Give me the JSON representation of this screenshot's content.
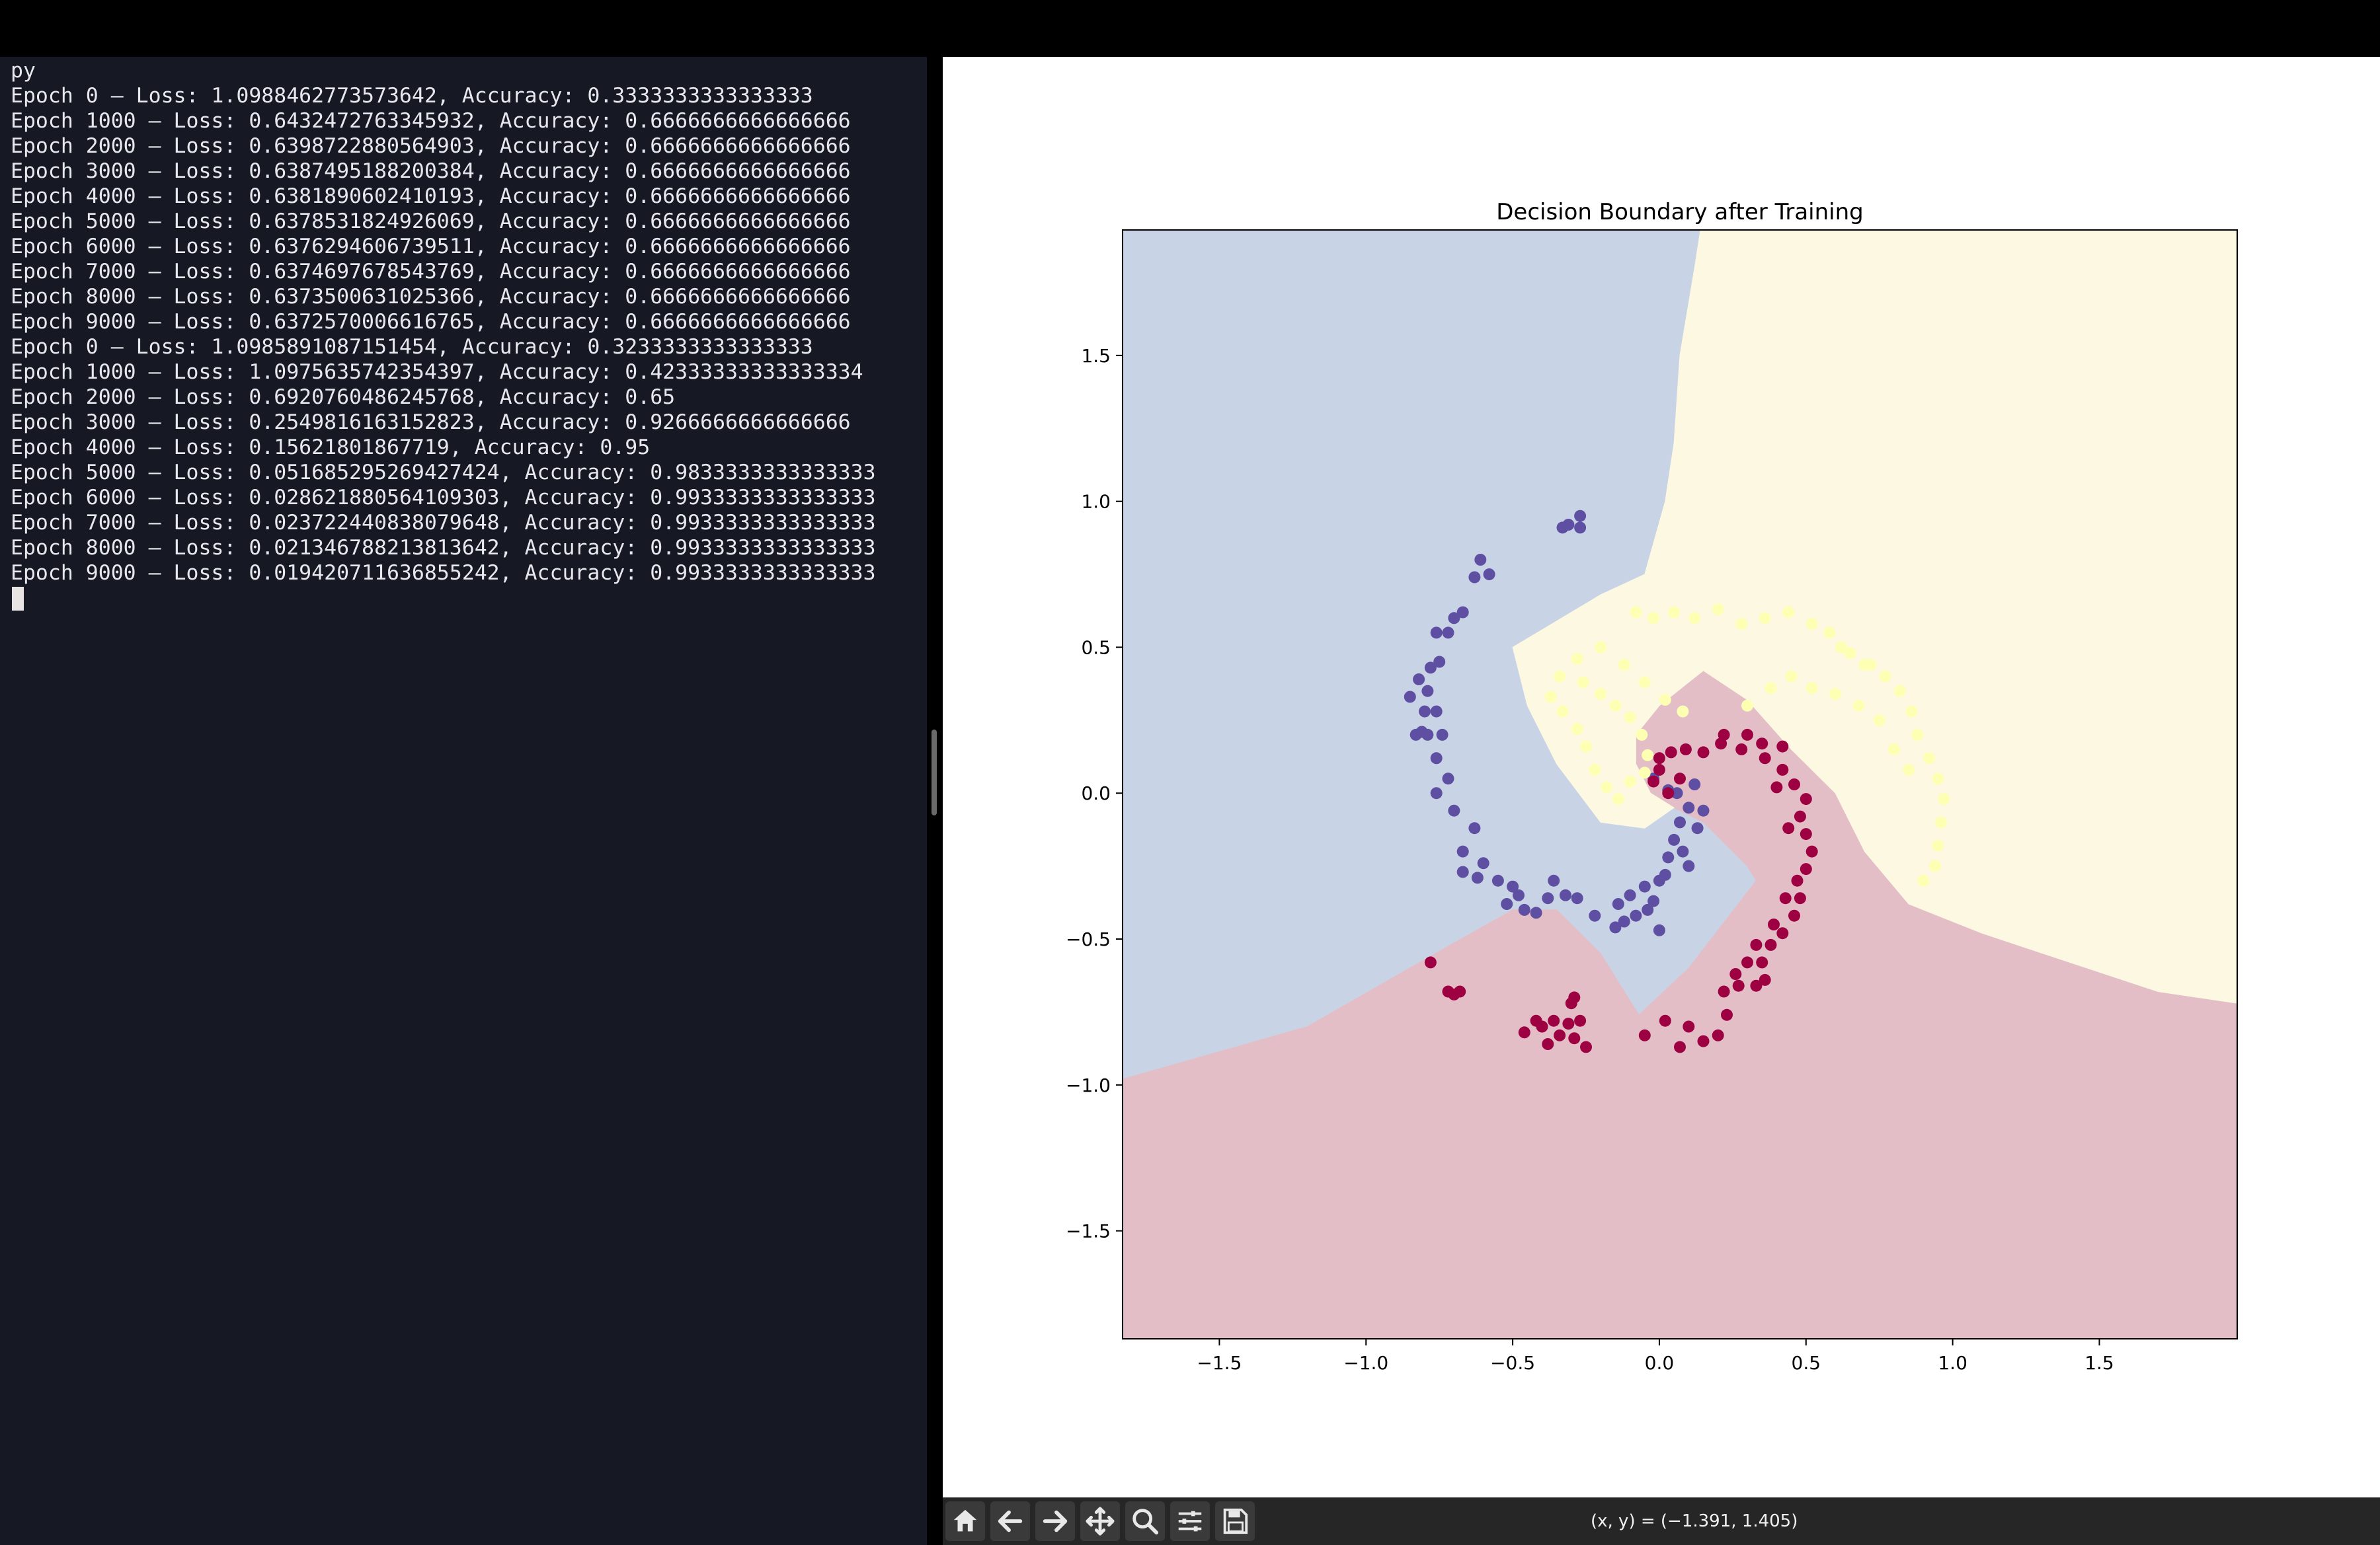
{
  "terminal": {
    "lines": [
      "py",
      "Epoch 0 – Loss: 1.0988462773573642, Accuracy: 0.3333333333333333",
      "Epoch 1000 – Loss: 0.6432472763345932, Accuracy: 0.6666666666666666",
      "Epoch 2000 – Loss: 0.6398722880564903, Accuracy: 0.6666666666666666",
      "Epoch 3000 – Loss: 0.6387495188200384, Accuracy: 0.6666666666666666",
      "Epoch 4000 – Loss: 0.6381890602410193, Accuracy: 0.6666666666666666",
      "Epoch 5000 – Loss: 0.6378531824926069, Accuracy: 0.6666666666666666",
      "Epoch 6000 – Loss: 0.6376294606739511, Accuracy: 0.6666666666666666",
      "Epoch 7000 – Loss: 0.6374697678543769, Accuracy: 0.6666666666666666",
      "Epoch 8000 – Loss: 0.6373500631025366, Accuracy: 0.6666666666666666",
      "Epoch 9000 – Loss: 0.6372570006616765, Accuracy: 0.6666666666666666",
      "Epoch 0 – Loss: 1.0985891087151454, Accuracy: 0.3233333333333333",
      "Epoch 1000 – Loss: 1.0975635742354397, Accuracy: 0.42333333333333334",
      "Epoch 2000 – Loss: 0.6920760486245768, Accuracy: 0.65",
      "Epoch 3000 – Loss: 0.2549816163152823, Accuracy: 0.9266666666666666",
      "Epoch 4000 – Loss: 0.15621801867719, Accuracy: 0.95",
      "Epoch 5000 – Loss: 0.051685295269427424, Accuracy: 0.9833333333333333",
      "Epoch 6000 – Loss: 0.028621880564109303, Accuracy: 0.9933333333333333",
      "Epoch 7000 – Loss: 0.023722440838079648, Accuracy: 0.9933333333333333",
      "Epoch 8000 – Loss: 0.021346788213813642, Accuracy: 0.9933333333333333",
      "Epoch 9000 – Loss: 0.019420711636855242, Accuracy: 0.9933333333333333"
    ]
  },
  "toolbar": {
    "icons": [
      "home-icon",
      "back-arrow-icon",
      "forward-arrow-icon",
      "pan-icon",
      "zoom-icon",
      "configure-subplots-icon",
      "save-icon"
    ],
    "coords": "(x, y) = (−1.391, 1.405)"
  },
  "chart_data": {
    "type": "scatter",
    "title": "Decision Boundary after Training",
    "xlabel": "",
    "ylabel": "",
    "xlim": [
      -1.83,
      1.97
    ],
    "ylim": [
      -1.87,
      1.93
    ],
    "xticks": [
      -1.5,
      -1.0,
      -0.5,
      0.0,
      0.5,
      1.0,
      1.5
    ],
    "xtick_labels": [
      "−1.5",
      "−1.0",
      "−0.5",
      "0.0",
      "0.5",
      "1.0",
      "1.5"
    ],
    "yticks": [
      1.5,
      1.0,
      0.5,
      0.0,
      -0.5,
      -1.0,
      -1.5
    ],
    "ytick_labels": [
      "1.5",
      "1.0",
      "0.5",
      "0.0",
      "−0.5",
      "−1.0",
      "−1.5"
    ],
    "region_colors": {
      "class0": "#c8d3e5",
      "class1": "#fdf8e2",
      "class2": "#e4bec6"
    },
    "point_colors": {
      "class0": "#5e4fa2",
      "class1": "#fdffb3",
      "class2": "#9e0142"
    },
    "regions": {
      "class0": [
        [
          -1.83,
          1.93
        ],
        [
          0.14,
          1.93
        ],
        [
          0.12,
          1.8
        ],
        [
          0.07,
          1.5
        ],
        [
          0.05,
          1.2
        ],
        [
          0.02,
          1.0
        ],
        [
          -0.05,
          0.75
        ],
        [
          -0.2,
          0.68
        ],
        [
          -0.4,
          0.56
        ],
        [
          -0.5,
          0.5
        ],
        [
          -0.45,
          0.3
        ],
        [
          -0.35,
          0.1
        ],
        [
          -0.2,
          -0.1
        ],
        [
          -0.05,
          -0.12
        ],
        [
          0.05,
          -0.05
        ],
        [
          0.15,
          -0.1
        ],
        [
          0.3,
          -0.25
        ],
        [
          0.33,
          -0.3
        ],
        [
          0.1,
          -0.6
        ],
        [
          -0.07,
          -0.76
        ],
        [
          -0.2,
          -0.55
        ],
        [
          -0.35,
          -0.4
        ],
        [
          -0.5,
          -0.4
        ],
        [
          -0.8,
          -0.57
        ],
        [
          -1.2,
          -0.8
        ],
        [
          -1.83,
          -0.98
        ]
      ],
      "class2": [
        [
          -1.83,
          -0.98
        ],
        [
          -1.2,
          -0.8
        ],
        [
          -0.8,
          -0.57
        ],
        [
          -0.5,
          -0.4
        ],
        [
          -0.35,
          -0.4
        ],
        [
          -0.2,
          -0.55
        ],
        [
          -0.07,
          -0.76
        ],
        [
          0.1,
          -0.6
        ],
        [
          0.33,
          -0.3
        ],
        [
          0.3,
          -0.25
        ],
        [
          0.15,
          -0.1
        ],
        [
          0.05,
          -0.05
        ],
        [
          -0.03,
          0.0
        ],
        [
          -0.08,
          0.1
        ],
        [
          -0.08,
          0.2
        ],
        [
          0.0,
          0.3
        ],
        [
          0.1,
          0.38
        ],
        [
          0.15,
          0.42
        ],
        [
          0.3,
          0.32
        ],
        [
          0.45,
          0.15
        ],
        [
          0.6,
          0.0
        ],
        [
          0.7,
          -0.2
        ],
        [
          0.85,
          -0.38
        ],
        [
          1.1,
          -0.48
        ],
        [
          1.4,
          -0.58
        ],
        [
          1.7,
          -0.68
        ],
        [
          1.97,
          -0.72
        ],
        [
          1.97,
          -1.87
        ],
        [
          -1.83,
          -1.87
        ]
      ],
      "class1": [
        [
          0.14,
          1.93
        ],
        [
          1.97,
          1.93
        ],
        [
          1.97,
          -0.72
        ],
        [
          1.7,
          -0.68
        ],
        [
          1.4,
          -0.58
        ],
        [
          1.1,
          -0.48
        ],
        [
          0.85,
          -0.38
        ],
        [
          0.7,
          -0.2
        ],
        [
          0.6,
          0.0
        ],
        [
          0.45,
          0.15
        ],
        [
          0.3,
          0.32
        ],
        [
          0.15,
          0.42
        ],
        [
          0.1,
          0.38
        ],
        [
          0.0,
          0.3
        ],
        [
          -0.08,
          0.2
        ],
        [
          -0.08,
          0.1
        ],
        [
          -0.03,
          0.0
        ],
        [
          0.05,
          -0.05
        ],
        [
          -0.05,
          -0.12
        ],
        [
          -0.2,
          -0.1
        ],
        [
          -0.35,
          0.1
        ],
        [
          -0.45,
          0.3
        ],
        [
          -0.5,
          0.5
        ],
        [
          -0.4,
          0.56
        ],
        [
          -0.2,
          0.68
        ],
        [
          -0.05,
          0.75
        ],
        [
          0.02,
          1.0
        ],
        [
          0.05,
          1.2
        ],
        [
          0.07,
          1.5
        ],
        [
          0.12,
          1.8
        ]
      ]
    },
    "series": [
      {
        "class": "class0",
        "points": [
          [
            -0.27,
            0.95
          ],
          [
            -0.33,
            0.91
          ],
          [
            -0.27,
            0.91
          ],
          [
            -0.31,
            0.92
          ],
          [
            -0.61,
            0.8
          ],
          [
            -0.63,
            0.74
          ],
          [
            -0.58,
            0.75
          ],
          [
            -0.67,
            0.62
          ],
          [
            -0.7,
            0.6
          ],
          [
            -0.76,
            0.55
          ],
          [
            -0.72,
            0.55
          ],
          [
            -0.75,
            0.45
          ],
          [
            -0.78,
            0.43
          ],
          [
            -0.82,
            0.39
          ],
          [
            -0.79,
            0.35
          ],
          [
            -0.85,
            0.33
          ],
          [
            -0.8,
            0.28
          ],
          [
            -0.76,
            0.28
          ],
          [
            -0.83,
            0.2
          ],
          [
            -0.79,
            0.2
          ],
          [
            -0.74,
            0.2
          ],
          [
            -0.81,
            0.21
          ],
          [
            -0.76,
            0.12
          ],
          [
            -0.72,
            0.05
          ],
          [
            -0.76,
            0.0
          ],
          [
            -0.7,
            -0.06
          ],
          [
            -0.63,
            -0.12
          ],
          [
            -0.67,
            -0.2
          ],
          [
            -0.6,
            -0.24
          ],
          [
            -0.62,
            -0.29
          ],
          [
            -0.67,
            -0.27
          ],
          [
            -0.55,
            -0.3
          ],
          [
            -0.5,
            -0.32
          ],
          [
            -0.48,
            -0.35
          ],
          [
            -0.52,
            -0.38
          ],
          [
            -0.46,
            -0.4
          ],
          [
            -0.42,
            -0.41
          ],
          [
            -0.38,
            -0.36
          ],
          [
            -0.36,
            -0.3
          ],
          [
            -0.32,
            -0.35
          ],
          [
            -0.28,
            -0.36
          ],
          [
            -0.22,
            -0.42
          ],
          [
            -0.14,
            -0.38
          ],
          [
            -0.12,
            -0.44
          ],
          [
            -0.08,
            -0.42
          ],
          [
            -0.04,
            -0.4
          ],
          [
            -0.1,
            -0.35
          ],
          [
            -0.05,
            -0.32
          ],
          [
            0.0,
            -0.3
          ],
          [
            0.02,
            -0.28
          ],
          [
            0.03,
            -0.22
          ],
          [
            0.05,
            -0.16
          ],
          [
            0.07,
            -0.1
          ],
          [
            0.1,
            -0.05
          ],
          [
            0.06,
            0.0
          ],
          [
            0.12,
            0.03
          ],
          [
            0.15,
            -0.06
          ],
          [
            0.13,
            -0.12
          ],
          [
            0.08,
            -0.2
          ],
          [
            0.1,
            -0.25
          ],
          [
            0.0,
            -0.47
          ],
          [
            -0.02,
            -0.37
          ],
          [
            -0.15,
            -0.46
          ],
          [
            -0.02,
            0.05
          ],
          [
            0.03,
            0.01
          ]
        ]
      },
      {
        "class": "class1",
        "points": [
          [
            -0.08,
            0.62
          ],
          [
            -0.02,
            0.6
          ],
          [
            0.05,
            0.62
          ],
          [
            0.12,
            0.6
          ],
          [
            0.2,
            0.63
          ],
          [
            0.28,
            0.58
          ],
          [
            0.36,
            0.6
          ],
          [
            0.44,
            0.62
          ],
          [
            0.52,
            0.58
          ],
          [
            0.58,
            0.55
          ],
          [
            0.65,
            0.48
          ],
          [
            0.72,
            0.44
          ],
          [
            0.77,
            0.4
          ],
          [
            0.82,
            0.35
          ],
          [
            0.86,
            0.28
          ],
          [
            0.88,
            0.2
          ],
          [
            0.92,
            0.12
          ],
          [
            0.95,
            0.05
          ],
          [
            0.97,
            -0.02
          ],
          [
            0.96,
            -0.1
          ],
          [
            0.95,
            -0.18
          ],
          [
            0.94,
            -0.25
          ],
          [
            0.9,
            -0.3
          ],
          [
            -0.37,
            0.33
          ],
          [
            -0.33,
            0.28
          ],
          [
            -0.28,
            0.22
          ],
          [
            -0.25,
            0.16
          ],
          [
            -0.22,
            0.08
          ],
          [
            -0.18,
            0.02
          ],
          [
            -0.14,
            -0.02
          ],
          [
            -0.1,
            0.04
          ],
          [
            -0.05,
            0.07
          ],
          [
            -0.04,
            0.13
          ],
          [
            -0.06,
            0.2
          ],
          [
            -0.1,
            0.26
          ],
          [
            -0.15,
            0.3
          ],
          [
            -0.2,
            0.34
          ],
          [
            -0.26,
            0.38
          ],
          [
            -0.34,
            0.4
          ],
          [
            -0.28,
            0.46
          ],
          [
            -0.2,
            0.5
          ],
          [
            -0.12,
            0.44
          ],
          [
            -0.05,
            0.38
          ],
          [
            0.02,
            0.32
          ],
          [
            0.08,
            0.28
          ],
          [
            0.3,
            0.3
          ],
          [
            0.38,
            0.36
          ],
          [
            0.45,
            0.4
          ],
          [
            0.52,
            0.36
          ],
          [
            0.6,
            0.34
          ],
          [
            0.68,
            0.3
          ],
          [
            0.75,
            0.25
          ],
          [
            0.8,
            0.15
          ],
          [
            0.85,
            0.08
          ],
          [
            0.7,
            0.44
          ],
          [
            0.62,
            0.5
          ]
        ]
      },
      {
        "class": "class2",
        "points": [
          [
            0.0,
            0.12
          ],
          [
            0.04,
            0.14
          ],
          [
            0.09,
            0.15
          ],
          [
            0.15,
            0.14
          ],
          [
            0.21,
            0.17
          ],
          [
            0.28,
            0.15
          ],
          [
            0.35,
            0.17
          ],
          [
            0.42,
            0.16
          ],
          [
            0.22,
            0.2
          ],
          [
            0.3,
            0.2
          ],
          [
            0.36,
            0.12
          ],
          [
            0.42,
            0.08
          ],
          [
            0.46,
            0.03
          ],
          [
            0.5,
            -0.02
          ],
          [
            0.48,
            -0.08
          ],
          [
            0.5,
            -0.14
          ],
          [
            0.52,
            -0.2
          ],
          [
            0.5,
            -0.26
          ],
          [
            0.47,
            -0.3
          ],
          [
            0.48,
            -0.36
          ],
          [
            0.46,
            -0.42
          ],
          [
            0.42,
            -0.48
          ],
          [
            0.38,
            -0.52
          ],
          [
            0.35,
            -0.58
          ],
          [
            0.36,
            -0.64
          ],
          [
            0.33,
            -0.66
          ],
          [
            0.3,
            -0.58
          ],
          [
            0.26,
            -0.62
          ],
          [
            0.22,
            -0.68
          ],
          [
            0.23,
            -0.76
          ],
          [
            0.2,
            -0.83
          ],
          [
            0.15,
            -0.85
          ],
          [
            0.1,
            -0.8
          ],
          [
            0.07,
            -0.87
          ],
          [
            0.02,
            -0.78
          ],
          [
            -0.05,
            -0.83
          ],
          [
            0.0,
            0.08
          ],
          [
            -0.02,
            0.04
          ],
          [
            0.03,
            0.0
          ],
          [
            0.07,
            0.05
          ],
          [
            0.4,
            0.02
          ],
          [
            0.44,
            -0.12
          ],
          [
            0.43,
            -0.36
          ],
          [
            0.39,
            -0.45
          ],
          [
            0.33,
            -0.52
          ],
          [
            0.27,
            -0.66
          ],
          [
            -0.29,
            -0.7
          ],
          [
            -0.27,
            -0.78
          ],
          [
            -0.31,
            -0.79
          ],
          [
            -0.36,
            -0.78
          ],
          [
            -0.42,
            -0.78
          ],
          [
            -0.46,
            -0.82
          ],
          [
            -0.38,
            -0.86
          ],
          [
            -0.34,
            -0.83
          ],
          [
            -0.29,
            -0.84
          ],
          [
            -0.25,
            -0.87
          ],
          [
            -0.4,
            -0.8
          ],
          [
            -0.68,
            -0.68
          ],
          [
            -0.72,
            -0.68
          ],
          [
            -0.7,
            -0.69
          ],
          [
            -0.78,
            -0.58
          ],
          [
            -0.3,
            -0.72
          ]
        ]
      }
    ]
  }
}
